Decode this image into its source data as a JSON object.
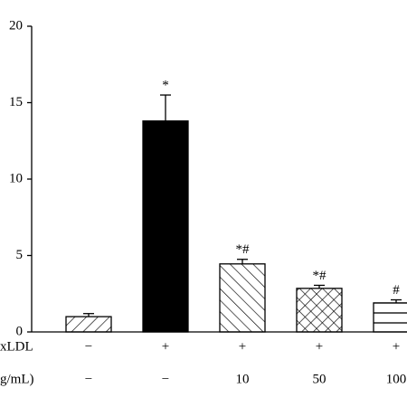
{
  "chart_data": {
    "type": "bar",
    "values": [
      1.0,
      13.8,
      4.45,
      2.85,
      1.9
    ],
    "errors": [
      0.2,
      1.7,
      0.3,
      0.2,
      0.2
    ],
    "annotations": [
      "",
      "*",
      "*#",
      "*#",
      "#"
    ],
    "patterns": [
      "slash",
      "solid",
      "backslash",
      "cross",
      "horizontal"
    ],
    "color": "#000000",
    "ylim": [
      0,
      20
    ],
    "yticks": [
      0,
      5,
      10,
      15,
      20
    ],
    "rows": [
      {
        "label": "xLDL",
        "values": [
          "−",
          "+",
          "+",
          "+",
          "+"
        ]
      },
      {
        "label": "g/mL)",
        "values": [
          "−",
          "−",
          "10",
          "50",
          "100"
        ]
      }
    ]
  }
}
